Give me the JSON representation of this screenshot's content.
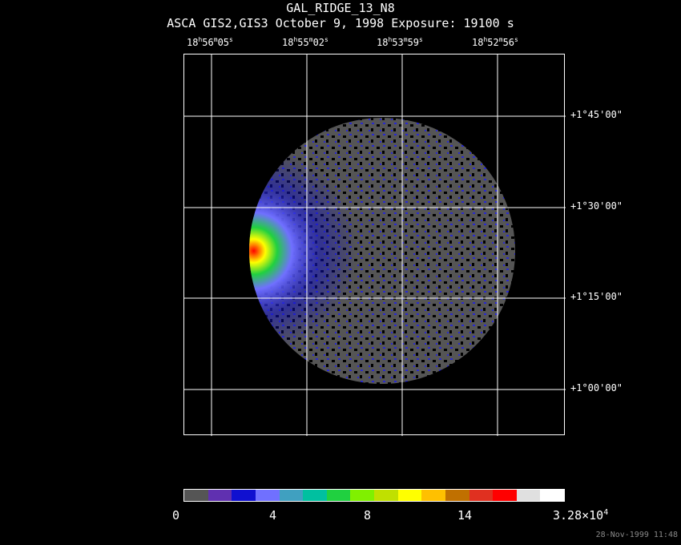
{
  "title": "GAL_RIDGE_13_N8",
  "subtitle": "ASCA GIS2,GIS3 October 9, 1998 Exposure: 19100 s",
  "ra_labels": [
    {
      "h": "18",
      "m": "56",
      "s": "05"
    },
    {
      "h": "18",
      "m": "55",
      "s": "02"
    },
    {
      "h": "18",
      "m": "53",
      "s": "59"
    },
    {
      "h": "18",
      "m": "52",
      "s": "56"
    }
  ],
  "dec_labels": [
    "+1°45'00\"",
    "+1°30'00\"",
    "+1°15'00\"",
    "+1°00'00\""
  ],
  "colorbar": {
    "colors": [
      "#555555",
      "#6030b0",
      "#1010d0",
      "#7070ff",
      "#40a0c0",
      "#00c0a0",
      "#20d040",
      "#80f000",
      "#c0e000",
      "#ffff00",
      "#ffc000",
      "#c07000",
      "#e03020",
      "#ff0000",
      "#e0e0e0",
      "#ffffff"
    ],
    "labels": {
      "l0": "0",
      "l1": "4",
      "l2": "8",
      "l3": "14",
      "l4_base": "3.28×10",
      "l4_exp": "4"
    }
  },
  "timestamp": "28-Nov-1999 11:48"
}
